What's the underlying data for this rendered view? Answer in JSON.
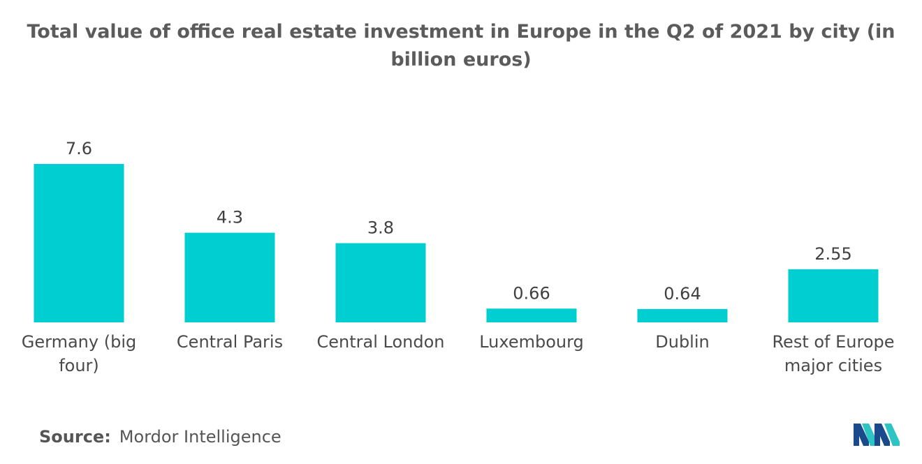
{
  "chart_data": {
    "type": "bar",
    "title": "Total value of office real estate investment in Europe in the Q2 of 2021 by city (in billion euros)",
    "categories": [
      "Germany (big four)",
      "Central Paris",
      "Central London",
      "Luxembourg",
      "Dublin",
      "Rest of Europe major cities"
    ],
    "value_labels": [
      "7.6",
      "4.3",
      "3.8",
      "0.66",
      "0.64",
      "2.55"
    ],
    "values": [
      7.6,
      4.3,
      3.8,
      0.66,
      0.64,
      2.55
    ],
    "xlabel": "",
    "ylabel": "",
    "ylim": [
      0,
      7.6
    ],
    "grid": false,
    "bar_color": "#00CED1"
  },
  "source": {
    "label": "Source:",
    "text": "Mordor Intelligence"
  },
  "logo": {
    "icon": "mordor-intelligence-logo-icon",
    "colors": [
      "#1a4a8c",
      "#2ec4c4"
    ]
  }
}
